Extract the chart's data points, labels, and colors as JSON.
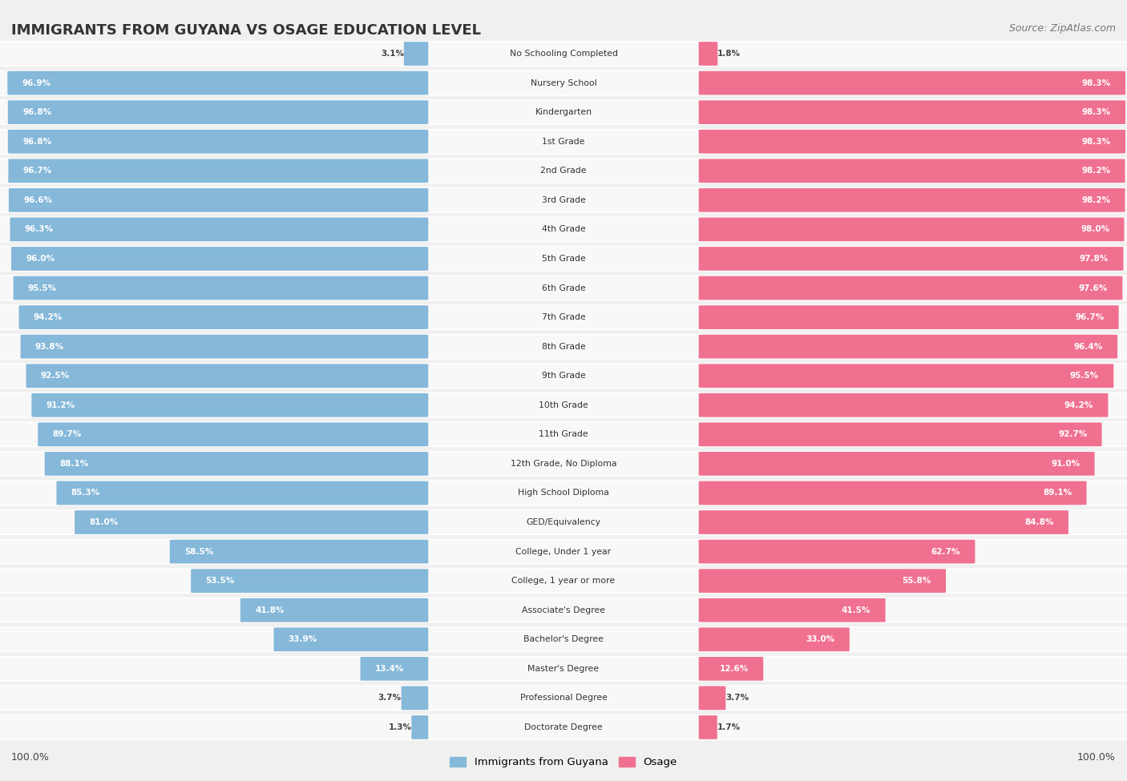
{
  "title": "IMMIGRANTS FROM GUYANA VS OSAGE EDUCATION LEVEL",
  "source": "Source: ZipAtlas.com",
  "categories": [
    "No Schooling Completed",
    "Nursery School",
    "Kindergarten",
    "1st Grade",
    "2nd Grade",
    "3rd Grade",
    "4th Grade",
    "5th Grade",
    "6th Grade",
    "7th Grade",
    "8th Grade",
    "9th Grade",
    "10th Grade",
    "11th Grade",
    "12th Grade, No Diploma",
    "High School Diploma",
    "GED/Equivalency",
    "College, Under 1 year",
    "College, 1 year or more",
    "Associate's Degree",
    "Bachelor's Degree",
    "Master's Degree",
    "Professional Degree",
    "Doctorate Degree"
  ],
  "guyana": [
    3.1,
    96.9,
    96.8,
    96.8,
    96.7,
    96.6,
    96.3,
    96.0,
    95.5,
    94.2,
    93.8,
    92.5,
    91.2,
    89.7,
    88.1,
    85.3,
    81.0,
    58.5,
    53.5,
    41.8,
    33.9,
    13.4,
    3.7,
    1.3
  ],
  "osage": [
    1.8,
    98.3,
    98.3,
    98.3,
    98.2,
    98.2,
    98.0,
    97.8,
    97.6,
    96.7,
    96.4,
    95.5,
    94.2,
    92.7,
    91.0,
    89.1,
    84.8,
    62.7,
    55.8,
    41.5,
    33.0,
    12.6,
    3.7,
    1.7
  ],
  "guyana_color": "#85B8D9",
  "osage_color": "#F07090",
  "background_color": "#f0f0f0",
  "bar_bg_color": "#dcdcdc",
  "row_bg_color": "#f8f8f8",
  "legend_guyana": "Immigrants from Guyana",
  "legend_osage": "Osage"
}
